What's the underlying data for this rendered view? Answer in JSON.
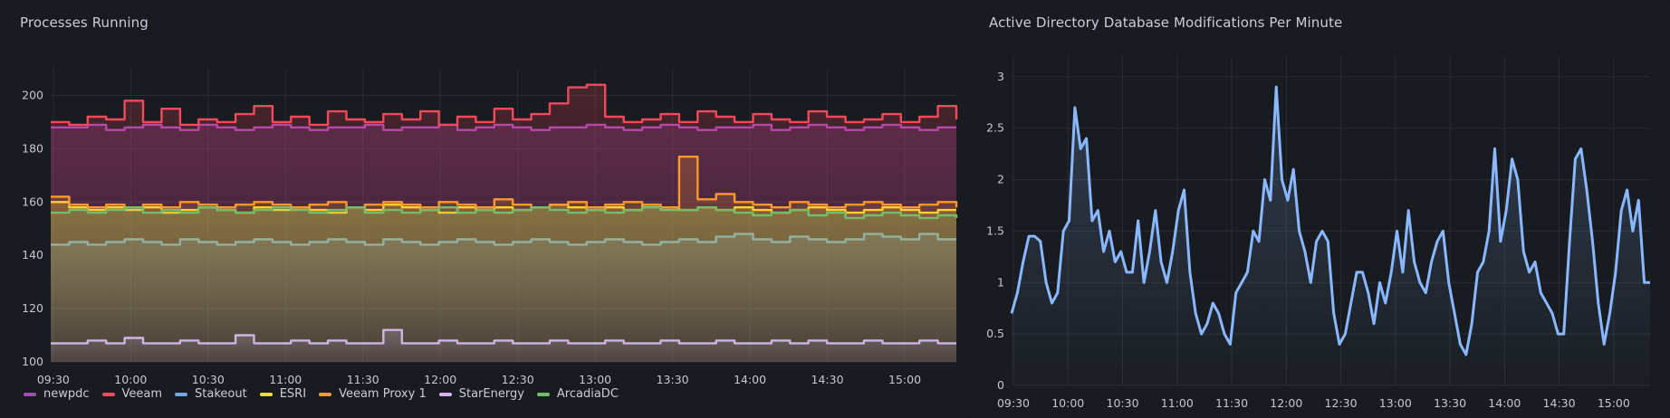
{
  "chart_data": [
    {
      "type": "line",
      "title": "Processes Running",
      "xlabel": "",
      "ylabel": "",
      "ylim": [
        100,
        210
      ],
      "yticks": [
        100,
        120,
        140,
        160,
        180,
        200
      ],
      "xticks": [
        "09:30",
        "10:00",
        "10:30",
        "11:00",
        "11:30",
        "12:00",
        "12:30",
        "13:00",
        "13:30",
        "14:00",
        "14:30",
        "15:00"
      ],
      "xrange": [
        "09:30",
        "15:20"
      ],
      "step": true,
      "fill": "gradient",
      "grid": true,
      "legend_position": "bottom-left",
      "series": [
        {
          "name": "newpdc",
          "color": "#ab47bc",
          "values": [
            188,
            188,
            189,
            187,
            188,
            189,
            188,
            187,
            189,
            188,
            187,
            188,
            189,
            188,
            187,
            188,
            188,
            189,
            187,
            188,
            188,
            189,
            187,
            188,
            189,
            188,
            187,
            188,
            188,
            189,
            188,
            187,
            188,
            189,
            188,
            187,
            188,
            188,
            189,
            187,
            188,
            189,
            188,
            187,
            188,
            189,
            188,
            187,
            188,
            188
          ]
        },
        {
          "name": "Veeam",
          "color": "#f2495c",
          "values": [
            190,
            189,
            192,
            191,
            198,
            190,
            195,
            189,
            191,
            190,
            193,
            196,
            190,
            192,
            189,
            194,
            191,
            190,
            193,
            191,
            194,
            189,
            192,
            190,
            195,
            191,
            193,
            197,
            203,
            204,
            192,
            190,
            191,
            193,
            190,
            194,
            192,
            190,
            193,
            191,
            190,
            194,
            192,
            190,
            191,
            193,
            190,
            192,
            196,
            191
          ]
        },
        {
          "name": "Stakeout",
          "color": "#73a7e6",
          "values": [
            144,
            145,
            144,
            145,
            146,
            145,
            144,
            146,
            145,
            144,
            145,
            146,
            145,
            144,
            145,
            146,
            145,
            144,
            146,
            145,
            144,
            145,
            146,
            145,
            144,
            145,
            146,
            145,
            144,
            145,
            146,
            145,
            144,
            145,
            146,
            145,
            147,
            148,
            146,
            145,
            147,
            146,
            145,
            146,
            148,
            147,
            146,
            148,
            146,
            146
          ]
        },
        {
          "name": "ESRI",
          "color": "#fade2a",
          "values": [
            160,
            158,
            157,
            158,
            157,
            158,
            156,
            157,
            158,
            157,
            156,
            158,
            157,
            158,
            157,
            156,
            158,
            157,
            159,
            158,
            157,
            156,
            158,
            157,
            158,
            157,
            158,
            159,
            158,
            157,
            158,
            157,
            159,
            158,
            157,
            158,
            157,
            158,
            157,
            156,
            157,
            158,
            157,
            156,
            157,
            158,
            157,
            156,
            157,
            157
          ]
        },
        {
          "name": "Veeam Proxy 1",
          "color": "#ff9830",
          "values": [
            162,
            159,
            158,
            159,
            158,
            159,
            158,
            160,
            159,
            158,
            159,
            160,
            159,
            158,
            159,
            160,
            158,
            159,
            160,
            159,
            158,
            160,
            159,
            158,
            161,
            159,
            158,
            159,
            160,
            158,
            159,
            160,
            159,
            158,
            177,
            161,
            163,
            160,
            159,
            158,
            160,
            159,
            158,
            159,
            160,
            159,
            158,
            159,
            160,
            158
          ]
        },
        {
          "name": "StarEnergy",
          "color": "#d6b4f0",
          "values": [
            107,
            107,
            108,
            107,
            109,
            107,
            107,
            108,
            107,
            107,
            110,
            107,
            107,
            108,
            107,
            108,
            107,
            107,
            112,
            107,
            107,
            108,
            107,
            107,
            108,
            107,
            107,
            108,
            107,
            107,
            108,
            107,
            107,
            108,
            107,
            107,
            108,
            107,
            107,
            108,
            107,
            108,
            107,
            107,
            108,
            107,
            107,
            108,
            107,
            107
          ]
        },
        {
          "name": "ArcadiaDC",
          "color": "#73bf69",
          "values": [
            156,
            157,
            156,
            157,
            158,
            156,
            157,
            156,
            158,
            157,
            156,
            157,
            158,
            157,
            156,
            157,
            158,
            156,
            157,
            156,
            157,
            158,
            156,
            157,
            156,
            157,
            158,
            157,
            156,
            157,
            156,
            157,
            158,
            157,
            157,
            158,
            157,
            156,
            155,
            156,
            157,
            155,
            156,
            154,
            155,
            156,
            155,
            154,
            155,
            154
          ]
        }
      ]
    },
    {
      "type": "area",
      "title": "Active Directory Database Modifications Per Minute",
      "xlabel": "",
      "ylabel": "",
      "ylim": [
        0,
        3.2
      ],
      "yticks": [
        "0",
        "0.5",
        "1",
        "1.5",
        "2",
        "2.5",
        "3"
      ],
      "xticks": [
        "09:30",
        "10:00",
        "10:30",
        "11:00",
        "11:30",
        "12:00",
        "12:30",
        "13:00",
        "13:30",
        "14:00",
        "14:30",
        "15:00"
      ],
      "xrange": [
        "09:30",
        "15:20"
      ],
      "grid": true,
      "series": [
        {
          "color": "#8ab8ff",
          "values": [
            0.7,
            0.9,
            1.2,
            1.45,
            1.45,
            1.4,
            1.0,
            0.8,
            0.9,
            1.5,
            1.6,
            2.7,
            2.3,
            2.4,
            1.6,
            1.7,
            1.3,
            1.5,
            1.2,
            1.3,
            1.1,
            1.1,
            1.6,
            1.0,
            1.3,
            1.7,
            1.2,
            1.0,
            1.3,
            1.7,
            1.9,
            1.1,
            0.7,
            0.5,
            0.6,
            0.8,
            0.7,
            0.5,
            0.4,
            0.9,
            1.0,
            1.1,
            1.5,
            1.4,
            2.0,
            1.8,
            2.9,
            2.0,
            1.8,
            2.1,
            1.5,
            1.3,
            1.0,
            1.4,
            1.5,
            1.4,
            0.7,
            0.4,
            0.5,
            0.8,
            1.1,
            1.1,
            0.9,
            0.6,
            1.0,
            0.8,
            1.1,
            1.5,
            1.1,
            1.7,
            1.2,
            1.0,
            0.9,
            1.2,
            1.4,
            1.5,
            1.0,
            0.7,
            0.4,
            0.3,
            0.6,
            1.1,
            1.2,
            1.5,
            2.3,
            1.4,
            1.7,
            2.2,
            2.0,
            1.3,
            1.1,
            1.2,
            0.9,
            0.8,
            0.7,
            0.5,
            0.5,
            1.4,
            2.2,
            2.3,
            1.9,
            1.4,
            0.8,
            0.4,
            0.7,
            1.1,
            1.7,
            1.9,
            1.5,
            1.8,
            1.0,
            1.0
          ]
        }
      ]
    }
  ]
}
